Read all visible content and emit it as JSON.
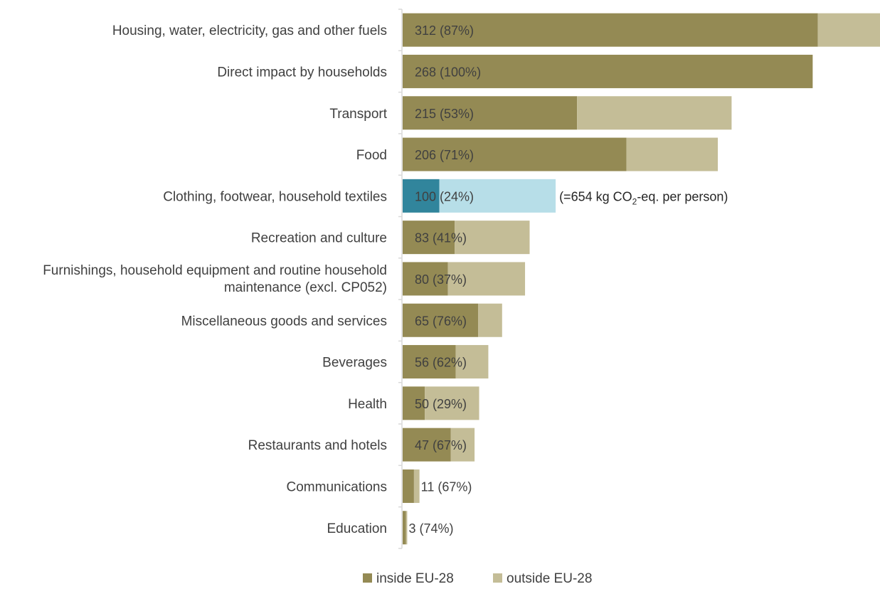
{
  "chart_data": {
    "type": "bar",
    "orientation": "horizontal",
    "stacked": true,
    "categories": [
      "Housing, water, electricity, gas and other fuels",
      "Direct impact by households",
      "Transport",
      "Food",
      "Clothing, footwear, household textiles",
      "Recreation and culture",
      "Furnishings, household equipment and routine household maintenance (excl. CP052)",
      "Miscellaneous goods and services",
      "Beverages",
      "Health",
      "Restaurants and hotels",
      "Communications",
      "Education"
    ],
    "category_lines": [
      [
        "Housing, water, electricity, gas and other fuels"
      ],
      [
        "Direct impact by households"
      ],
      [
        "Transport"
      ],
      [
        "Food"
      ],
      [
        "Clothing, footwear, household textiles"
      ],
      [
        "Recreation and culture"
      ],
      [
        "Furnishings, household equipment and routine household",
        "maintenance (excl. CP052)"
      ],
      [
        "Miscellaneous goods and services"
      ],
      [
        "Beverages"
      ],
      [
        "Health"
      ],
      [
        "Restaurants and hotels"
      ],
      [
        "Communications"
      ],
      [
        "Education"
      ]
    ],
    "totals": [
      312,
      268,
      215,
      206,
      100,
      83,
      80,
      65,
      56,
      50,
      47,
      11,
      3
    ],
    "inside_share_pct": [
      87,
      100,
      53,
      71,
      24,
      41,
      37,
      76,
      62,
      29,
      67,
      67,
      74
    ],
    "series": [
      {
        "name": "inside EU-28",
        "values": [
          271.4,
          268,
          114,
          146.3,
          24,
          34,
          29.6,
          49.4,
          34.7,
          14.5,
          31.5,
          7.4,
          2.2
        ],
        "color": "#948a54"
      },
      {
        "name": "outside EU-28",
        "values": [
          40.6,
          0,
          101,
          59.7,
          76,
          49,
          50.4,
          15.6,
          21.3,
          35.5,
          15.5,
          3.6,
          0.8
        ],
        "color": "#c4bd97"
      }
    ],
    "data_labels": [
      "312 (87%)",
      "268 (100%)",
      "215 (53%)",
      "206 (71%)",
      "100 (24%)",
      "83 (41%)",
      "80 (37%)",
      "65 (76%)",
      "56 (62%)",
      "50 (29%)",
      "47 (67%)",
      "11 (67%)",
      "3 (74%)"
    ],
    "highlight": {
      "index": 4,
      "inside_color": "#31859c",
      "outside_color": "#b7dee8",
      "annotation": "(=654 kg CO₂-eq. per person)"
    },
    "xlim": [
      0,
      312
    ],
    "axis_color": "#d9d9d9",
    "label_color": "#404040",
    "grid": false,
    "legend_position": "bottom"
  }
}
